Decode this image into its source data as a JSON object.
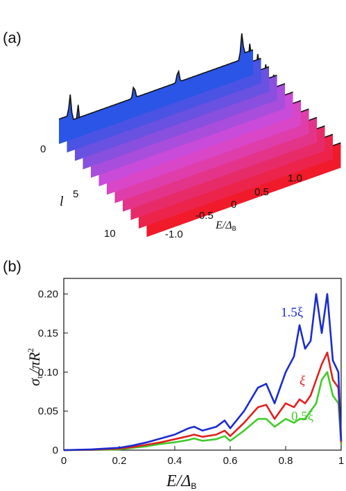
{
  "panel_a": {
    "label": "(a)",
    "l_axis_label": "l",
    "l_ticks": [
      "0",
      "5",
      "10"
    ],
    "e_axis_label_main": "E/Δ",
    "e_axis_label_sub": "B",
    "e_ticks": [
      "-1.0",
      "-0.5",
      "0",
      "0.5",
      "1.0"
    ],
    "colors": {
      "blue": "#2a55e6",
      "magenta": "#d84ad8",
      "red": "#f01a2a"
    }
  },
  "panel_b": {
    "label": "(b)",
    "y_label_main": "σ",
    "y_label_sub": "tr",
    "y_label_rest": "/πR",
    "y_label_sup": "2",
    "x_label_main": "E/Δ",
    "x_label_sub": "B",
    "x_ticks": [
      "0",
      "0.2",
      "0.4",
      "0.6",
      "0.8",
      "1"
    ],
    "y_ticks": [
      "0",
      "0.05",
      "0.10",
      "0.15",
      "0.20"
    ],
    "series_labels": {
      "blue": {
        "text": "1.5ξ",
        "color": "#1a2bd0"
      },
      "red": {
        "text": "ξ",
        "color": "#e0201c"
      },
      "green": {
        "text": "0.5ξ",
        "color": "#3fcc28"
      }
    }
  },
  "chart_data": [
    {
      "type": "area",
      "panel": "a",
      "description_axes": {
        "x_range": [
          -1.1,
          1.1
        ],
        "l_range": [
          0,
          11
        ]
      }
    },
    {
      "type": "line",
      "panel": "b",
      "xlim": [
        0,
        1
      ],
      "ylim": [
        0,
        0.22
      ],
      "grid": false,
      "x": [
        0,
        0.1,
        0.2,
        0.25,
        0.3,
        0.35,
        0.4,
        0.45,
        0.47,
        0.5,
        0.55,
        0.58,
        0.6,
        0.65,
        0.7,
        0.73,
        0.76,
        0.8,
        0.83,
        0.85,
        0.87,
        0.89,
        0.91,
        0.93,
        0.95,
        0.97,
        0.99,
        1.0
      ],
      "series": [
        {
          "name": "1.5ξ",
          "color": "#1a2bd0",
          "values": [
            0,
            0.001,
            0.003,
            0.006,
            0.01,
            0.015,
            0.02,
            0.028,
            0.03,
            0.025,
            0.03,
            0.038,
            0.028,
            0.05,
            0.08,
            0.085,
            0.06,
            0.1,
            0.12,
            0.16,
            0.13,
            0.14,
            0.2,
            0.15,
            0.2,
            0.115,
            0.1,
            0.012
          ]
        },
        {
          "name": "ξ",
          "color": "#e0201c",
          "values": [
            0,
            0.0005,
            0.002,
            0.004,
            0.007,
            0.01,
            0.014,
            0.018,
            0.02,
            0.017,
            0.02,
            0.025,
            0.018,
            0.035,
            0.055,
            0.058,
            0.04,
            0.06,
            0.055,
            0.065,
            0.06,
            0.07,
            0.09,
            0.11,
            0.125,
            0.09,
            0.08,
            0.01
          ]
        },
        {
          "name": "0.5ξ",
          "color": "#3fcc28",
          "values": [
            0,
            0.0003,
            0.001,
            0.003,
            0.005,
            0.008,
            0.01,
            0.013,
            0.015,
            0.012,
            0.014,
            0.018,
            0.012,
            0.025,
            0.04,
            0.04,
            0.03,
            0.04,
            0.035,
            0.04,
            0.04,
            0.05,
            0.06,
            0.09,
            0.1,
            0.07,
            0.06,
            0.008
          ]
        }
      ]
    }
  ]
}
